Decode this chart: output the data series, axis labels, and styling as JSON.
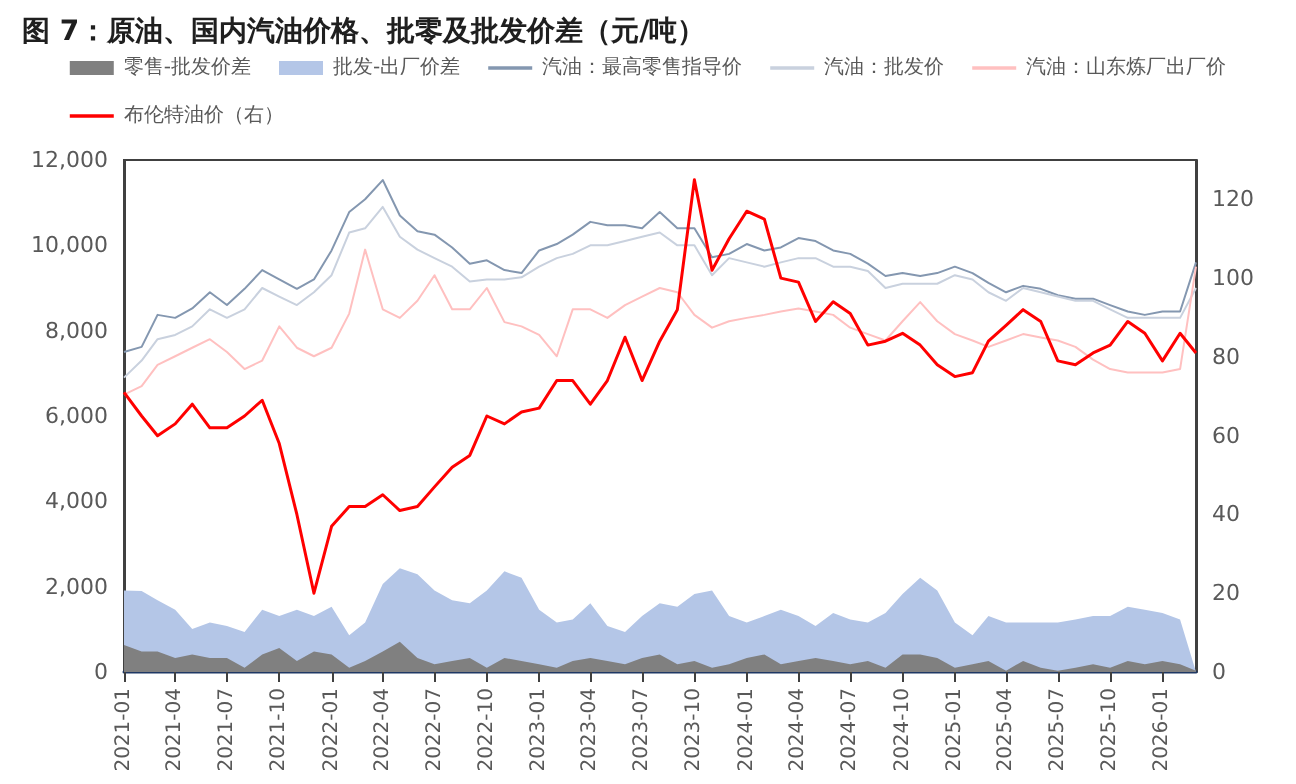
{
  "chart_data": {
    "type": "line",
    "title": "图 7：原油、国内汽油价格、批零及批发价差（元/吨）",
    "x": [
      "2021-01",
      "2021-02",
      "2021-03",
      "2021-04",
      "2021-05",
      "2021-06",
      "2021-07",
      "2021-08",
      "2021-09",
      "2021-10",
      "2021-11",
      "2021-12",
      "2022-01",
      "2022-02",
      "2022-03",
      "2022-04",
      "2022-05",
      "2022-06",
      "2022-07",
      "2022-08",
      "2022-09",
      "2022-10",
      "2022-11",
      "2022-12",
      "2023-01",
      "2023-02",
      "2023-03",
      "2023-04",
      "2023-05",
      "2023-06",
      "2023-07",
      "2023-08",
      "2023-09",
      "2023-10",
      "2023-11",
      "2023-12",
      "2024-01",
      "2024-02",
      "2024-03",
      "2024-04",
      "2024-05",
      "2024-06",
      "2024-07",
      "2024-08",
      "2024-09",
      "2024-10",
      "2024-11",
      "2024-12",
      "2025-01",
      "2025-02",
      "2025-03",
      "2025-04",
      "2025-05",
      "2025-06",
      "2025-07",
      "2025-08",
      "2025-09",
      "2025-10",
      "2025-11",
      "2025-12",
      "2026-01",
      "2026-02",
      "2026-03"
    ],
    "series": [
      {
        "name": "零售-批发价差",
        "type": "area",
        "color": "#808080",
        "values": [
          630,
          480,
          480,
          330,
          410,
          330,
          330,
          100,
          410,
          560,
          260,
          480,
          410,
          100,
          260,
          480,
          710,
          330,
          180,
          260,
          330,
          100,
          330,
          260,
          180,
          100,
          260,
          330,
          260,
          180,
          330,
          410,
          180,
          260,
          100,
          180,
          330,
          410,
          180,
          260,
          330,
          260,
          180,
          260,
          100,
          410,
          410,
          330,
          100,
          180,
          260,
          30,
          260,
          100,
          30,
          100,
          180,
          100,
          260,
          180,
          260,
          180,
          30
        ]
      },
      {
        "name": "批发-出厂价差",
        "type": "area",
        "color": "#b4c6e7",
        "values": [
          1910,
          1900,
          1680,
          1460,
          1010,
          1160,
          1080,
          940,
          1460,
          1310,
          1460,
          1310,
          1530,
          860,
          1160,
          2060,
          2430,
          2290,
          1910,
          1680,
          1610,
          1910,
          2360,
          2210,
          1460,
          1160,
          1230,
          1610,
          1080,
          940,
          1310,
          1610,
          1530,
          1830,
          1910,
          1310,
          1160,
          1310,
          1460,
          1310,
          1080,
          1380,
          1230,
          1160,
          1380,
          1830,
          2210,
          1910,
          1160,
          860,
          1310,
          1160,
          1160,
          1160,
          1160,
          1230,
          1310,
          1310,
          1530,
          1460,
          1380,
          1230,
          0
        ]
      },
      {
        "name": "汽油：最高零售指导价",
        "color": "#8497b0",
        "values": [
          7500,
          7620,
          8370,
          8300,
          8520,
          8900,
          8600,
          8980,
          9420,
          9200,
          8980,
          9200,
          9880,
          10780,
          11080,
          11530,
          10700,
          10330,
          10250,
          9950,
          9570,
          9650,
          9420,
          9350,
          9880,
          10030,
          10250,
          10550,
          10470,
          10470,
          10400,
          10780,
          10400,
          10400,
          9720,
          9800,
          10030,
          9880,
          9950,
          10170,
          10100,
          9880,
          9800,
          9570,
          9280,
          9350,
          9280,
          9350,
          9500,
          9350,
          9120,
          8900,
          9050,
          8980,
          8830,
          8750,
          8750,
          8600,
          8450,
          8370,
          8450,
          8450,
          9600
        ]
      },
      {
        "name": "汽油：批发价",
        "color": "#c9d1de",
        "values": [
          6900,
          7300,
          7800,
          7900,
          8100,
          8500,
          8300,
          8500,
          9000,
          8800,
          8600,
          8900,
          9300,
          10300,
          10400,
          10900,
          10200,
          9900,
          9700,
          9500,
          9150,
          9200,
          9200,
          9250,
          9500,
          9700,
          9800,
          10000,
          10000,
          10100,
          10200,
          10300,
          10000,
          10000,
          9300,
          9700,
          9600,
          9500,
          9600,
          9700,
          9700,
          9500,
          9500,
          9400,
          9000,
          9100,
          9100,
          9100,
          9300,
          9200,
          8900,
          8700,
          9000,
          8900,
          8800,
          8700,
          8700,
          8500,
          8300,
          8300,
          8300,
          8300,
          9000
        ]
      },
      {
        "name": "汽油：山东炼厂出厂价",
        "color": "#ffc0c0",
        "values": [
          6500,
          6700,
          7200,
          7400,
          7600,
          7800,
          7500,
          7100,
          7300,
          8100,
          7600,
          7400,
          7600,
          8400,
          9900,
          8500,
          8300,
          8700,
          9300,
          8500,
          8500,
          9000,
          8200,
          8100,
          7900,
          7400,
          8500,
          8500,
          8300,
          8600,
          8800,
          9000,
          8900,
          8370,
          8070,
          8220,
          8300,
          8370,
          8450,
          8520,
          8450,
          8370,
          8070,
          7920,
          7770,
          8220,
          8670,
          8220,
          7920,
          7770,
          7620,
          7770,
          7920,
          7840,
          7770,
          7620,
          7320,
          7100,
          7020,
          7020,
          7020,
          7100,
          9500
        ]
      },
      {
        "name": "布伦特油价（右）",
        "axis": "y2",
        "color": "#ff0000",
        "values": [
          71,
          65,
          60,
          63,
          68,
          62,
          62,
          65,
          69,
          58,
          40,
          20,
          37,
          42,
          42,
          45,
          41,
          42,
          47,
          52,
          55,
          65,
          63,
          66,
          67,
          74,
          74,
          68,
          74,
          85,
          74,
          84,
          92,
          125,
          102,
          110,
          117,
          115,
          100,
          99,
          89,
          94,
          91,
          83,
          84,
          86,
          83,
          78,
          75,
          76,
          84,
          88,
          92,
          89,
          79,
          78,
          81,
          83,
          89,
          86,
          79,
          86,
          81
        ]
      }
    ],
    "xlim": [
      "2021-01",
      "2026-03"
    ],
    "xticks": [
      "2021-01",
      "2021-04",
      "2021-07",
      "2021-10",
      "2022-01",
      "2022-04",
      "2022-07",
      "2022-10",
      "2023-01",
      "2023-04",
      "2023-07",
      "2023-10",
      "2024-01",
      "2024-04",
      "2024-07",
      "2024-10",
      "2025-01",
      "2025-04",
      "2025-07",
      "2025-10",
      "2026-01"
    ],
    "ylim": [
      0,
      12000
    ],
    "yticks": [
      0,
      {
        "value": 2000,
        "label": "2,000"
      },
      {
        "value": 4000,
        "label": "4,000"
      },
      {
        "value": 6000,
        "label": "6,000"
      },
      {
        "value": 8000,
        "label": "8,000"
      },
      {
        "value": 10000,
        "label": "10,000"
      },
      {
        "value": 12000,
        "label": "12,000"
      }
    ],
    "y2lim": [
      0,
      130
    ],
    "y2ticks": [
      0,
      20,
      40,
      60,
      80,
      100,
      120
    ],
    "grid": false,
    "legend": "top",
    "marker": "none"
  }
}
